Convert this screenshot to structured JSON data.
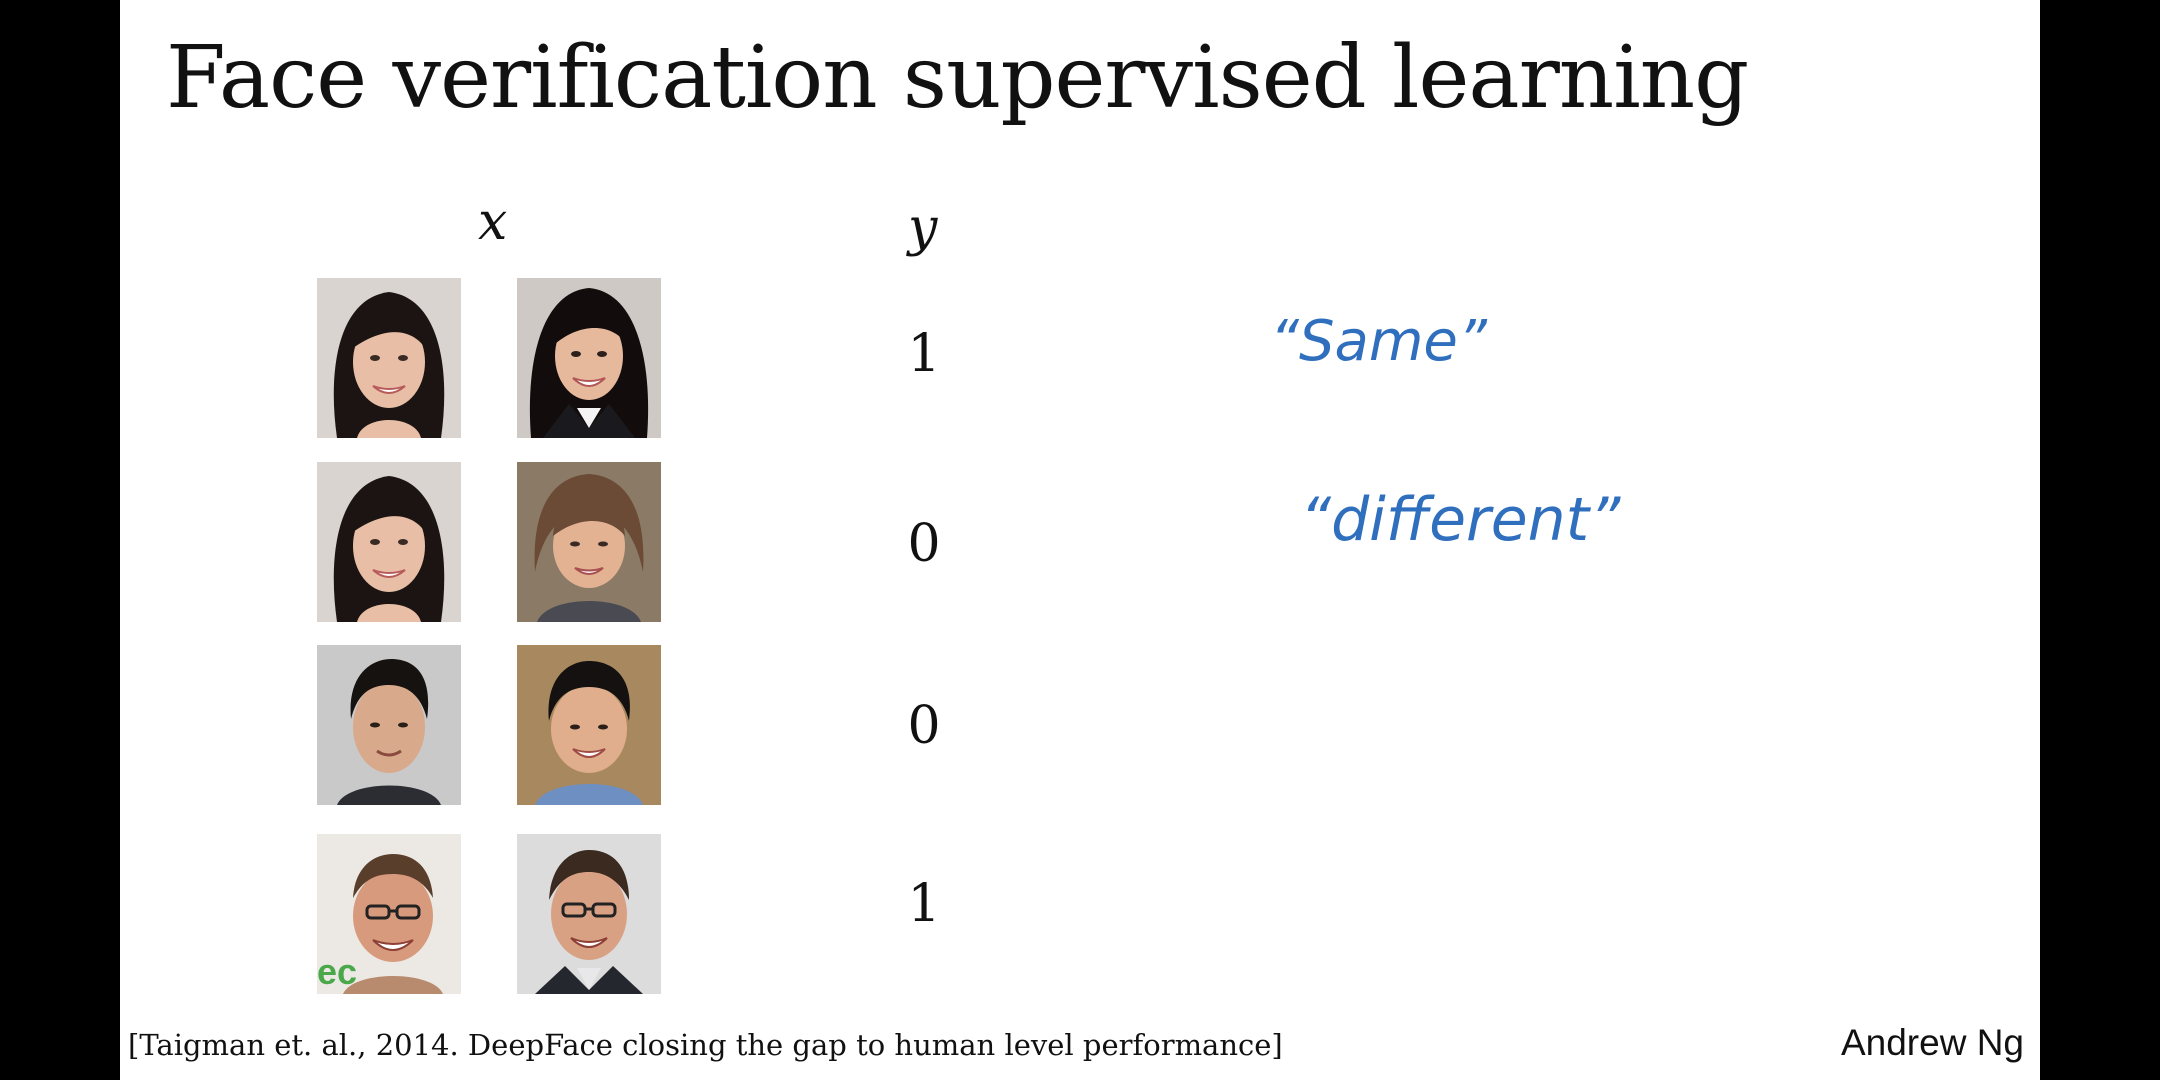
{
  "slide": {
    "title": "Face verification supervised learning",
    "x_label": "x",
    "y_label": "y",
    "rows": [
      {
        "left_face": "smiling-woman-long-dark-hair",
        "right_face": "smiling-woman-dark-hair-business",
        "label": "1"
      },
      {
        "left_face": "smiling-woman-long-dark-hair",
        "right_face": "older-woman-short-hair",
        "label": "0"
      },
      {
        "left_face": "young-man-short-dark-hair",
        "right_face": "man-short-dark-hair-blue-shirt",
        "label": "0"
      },
      {
        "left_face": "man-glasses-smiling",
        "right_face": "man-glasses-smiling-suit",
        "label": "1"
      }
    ],
    "annotations": {
      "same": "“Same”",
      "different": "“different”"
    },
    "citation": "[Taigman et. al., 2014. DeepFace closing the gap to human level performance]",
    "author": "Andrew Ng"
  },
  "colors": {
    "ink_blue": "#2f6fbe",
    "text": "#111111",
    "background": "#ffffff"
  }
}
